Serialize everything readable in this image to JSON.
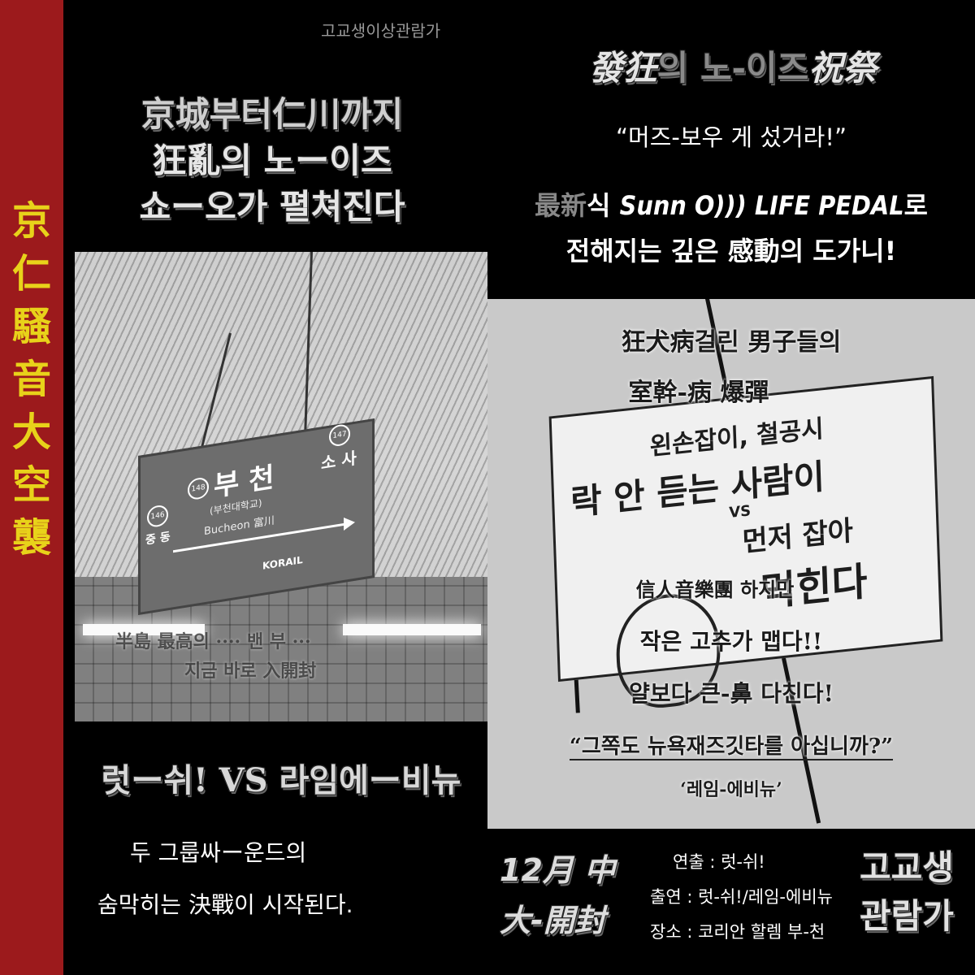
{
  "side_title": [
    "京",
    "仁",
    "騷",
    "音",
    "大",
    "空",
    "襲"
  ],
  "left": {
    "watermark": "고교생이상관람가",
    "headline": [
      "京城부터仁川까지",
      "狂亂의 노ー이즈",
      "쇼ー오가 펼쳐진다"
    ],
    "photo": {
      "sign_station": "부 천",
      "sign_station_sub": "(부천대학교)",
      "sign_station_en": "Bucheon 富川",
      "sign_left": "중 동",
      "sign_right": "소 사",
      "sign_num_main": "148",
      "sign_num_right": "147",
      "sign_num_left": "146",
      "sign_brand": "KORAIL",
      "overlay_line1": "半島 最高의 ···· 밴 부 ···",
      "overlay_line2": "지금 바로 入開封"
    },
    "battle_title": "럿ー쉬! VS 라임에ー비뉴",
    "battle_line1": "두 그룹싸ー운드의",
    "battle_line2": "숨막히는 決戰이 시작된다."
  },
  "right": {
    "festival_title": {
      "part1": "發狂",
      "part2": "의 노-이즈",
      "part3": "祝祭"
    },
    "quote": "“머즈-보우 게 섰거라!”",
    "pedal_line1": {
      "part1": "最新",
      "part2": "식 ",
      "part3": "Sunn O))) LIFE PEDAL",
      "part4": "로"
    },
    "pedal_line2": "전해지는 깊은 感動의 도가니!",
    "banner": {
      "handwrite1": "왼손잡이, 철공시",
      "handwrite2": "락 안 듣는 사람이",
      "handwrite3": "VS",
      "handwrite4": "먼저 잡아",
      "handwrite5": "먹힌다",
      "line1": "狂犬病걸린 男子들의",
      "line2": "室幹-病 爆彈",
      "line3": "信人音樂團 하지만",
      "line4": "작은 고추가 맵다!!",
      "line5": "얄보다 큰-鼻 다친다!",
      "line6": "“그쪽도 뉴욕재즈깃타를 아십니까?”",
      "line7": "‘레임-에비뉴’"
    },
    "release": [
      "12月 中",
      "大-開封"
    ],
    "credits": {
      "director": "연출 : 럿-쉬!",
      "cast": "출연 : 럿-쉬!/레임-에비뉴",
      "venue": "장소 : 코리안 할렘 부-천"
    },
    "rating": [
      "고교생",
      "관람가"
    ]
  },
  "colors": {
    "strip": "#9c1a1c",
    "strip_text": "#e8d21a"
  }
}
